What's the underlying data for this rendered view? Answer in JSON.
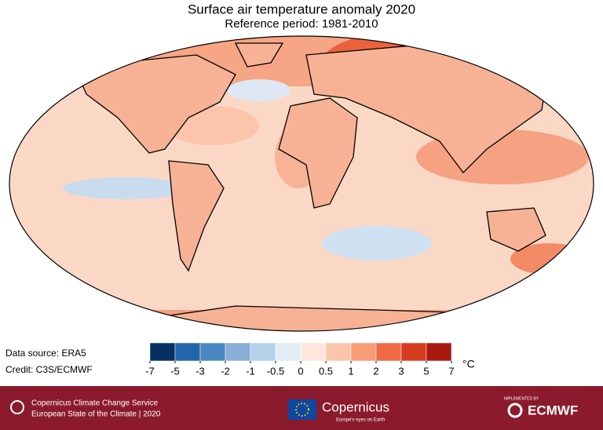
{
  "header": {
    "title": "Surface air temperature anomaly 2020",
    "subtitle": "Reference period: 1981-2010"
  },
  "notes": {
    "source": "Data source: ERA5",
    "credit": "Credit: C3S/ECMWF"
  },
  "colorbar": {
    "ticks": [
      -7,
      -5,
      -3,
      -2,
      -1,
      -0.5,
      0,
      0.5,
      1,
      2,
      3,
      5,
      7
    ],
    "colors": [
      "#053061",
      "#2166ac",
      "#4b87c2",
      "#87afd8",
      "#b6d0ea",
      "#e2ecf6",
      "#fde6dc",
      "#fcc4aa",
      "#f99b77",
      "#f06a45",
      "#d63b1f",
      "#a81a10"
    ],
    "unit": "°C"
  },
  "footer": {
    "service": "Copernicus Climate Change Service",
    "report": "European State of the Climate | 2020",
    "copernicus": "Copernicus",
    "tagline": "Europe's eyes on Earth",
    "implemented": "IMPLEMENTED BY",
    "ecmwf": "ECMWF"
  }
}
